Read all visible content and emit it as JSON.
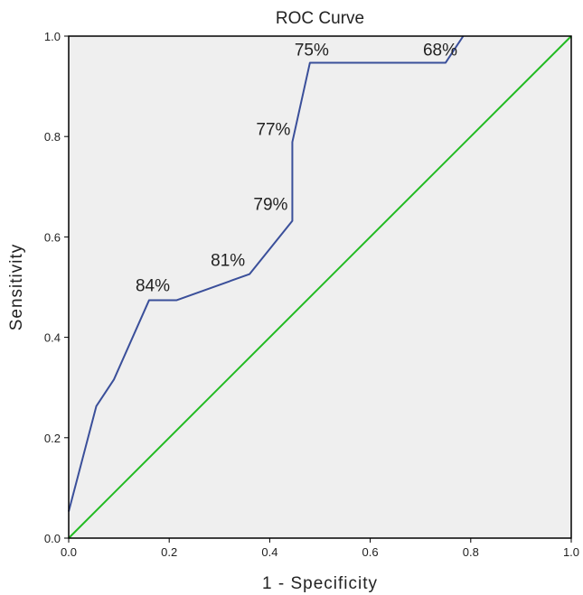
{
  "chart_data": {
    "type": "line",
    "title": "ROC Curve",
    "xlabel": "1 - Specificity",
    "ylabel": "Sensitivity",
    "xlim": [
      0,
      1
    ],
    "ylim": [
      0,
      1
    ],
    "x_ticks": [
      "0.0",
      "0.2",
      "0.4",
      "0.6",
      "0.8",
      "1.0"
    ],
    "y_ticks": [
      "0.0",
      "0.2",
      "0.4",
      "0.6",
      "0.8",
      "1.0"
    ],
    "grid": false,
    "legend": "none",
    "series": [
      {
        "x": [
          0.0,
          0.055,
          0.09,
          0.16,
          0.215,
          0.36,
          0.445,
          0.445,
          0.48,
          0.75,
          0.785
        ],
        "y": [
          0.053,
          0.263,
          0.316,
          0.474,
          0.474,
          0.526,
          0.632,
          0.789,
          0.947,
          0.947,
          1.0
        ],
        "color": "#3a4f9a"
      },
      {
        "x": [
          0.0,
          1.0
        ],
        "y": [
          0.0,
          1.0
        ],
        "color": "#22bb22"
      }
    ],
    "annotations": [
      {
        "text": "84%",
        "x": 0.16,
        "y": 0.474
      },
      {
        "text": "81%",
        "x": 0.36,
        "y": 0.526
      },
      {
        "text": "79%",
        "x": 0.445,
        "y": 0.632
      },
      {
        "text": "77%",
        "x": 0.445,
        "y": 0.789
      },
      {
        "text": "75%",
        "x": 0.48,
        "y": 0.947
      },
      {
        "text": "68%",
        "x": 0.75,
        "y": 0.947
      }
    ],
    "plot_background": "#efefef"
  }
}
